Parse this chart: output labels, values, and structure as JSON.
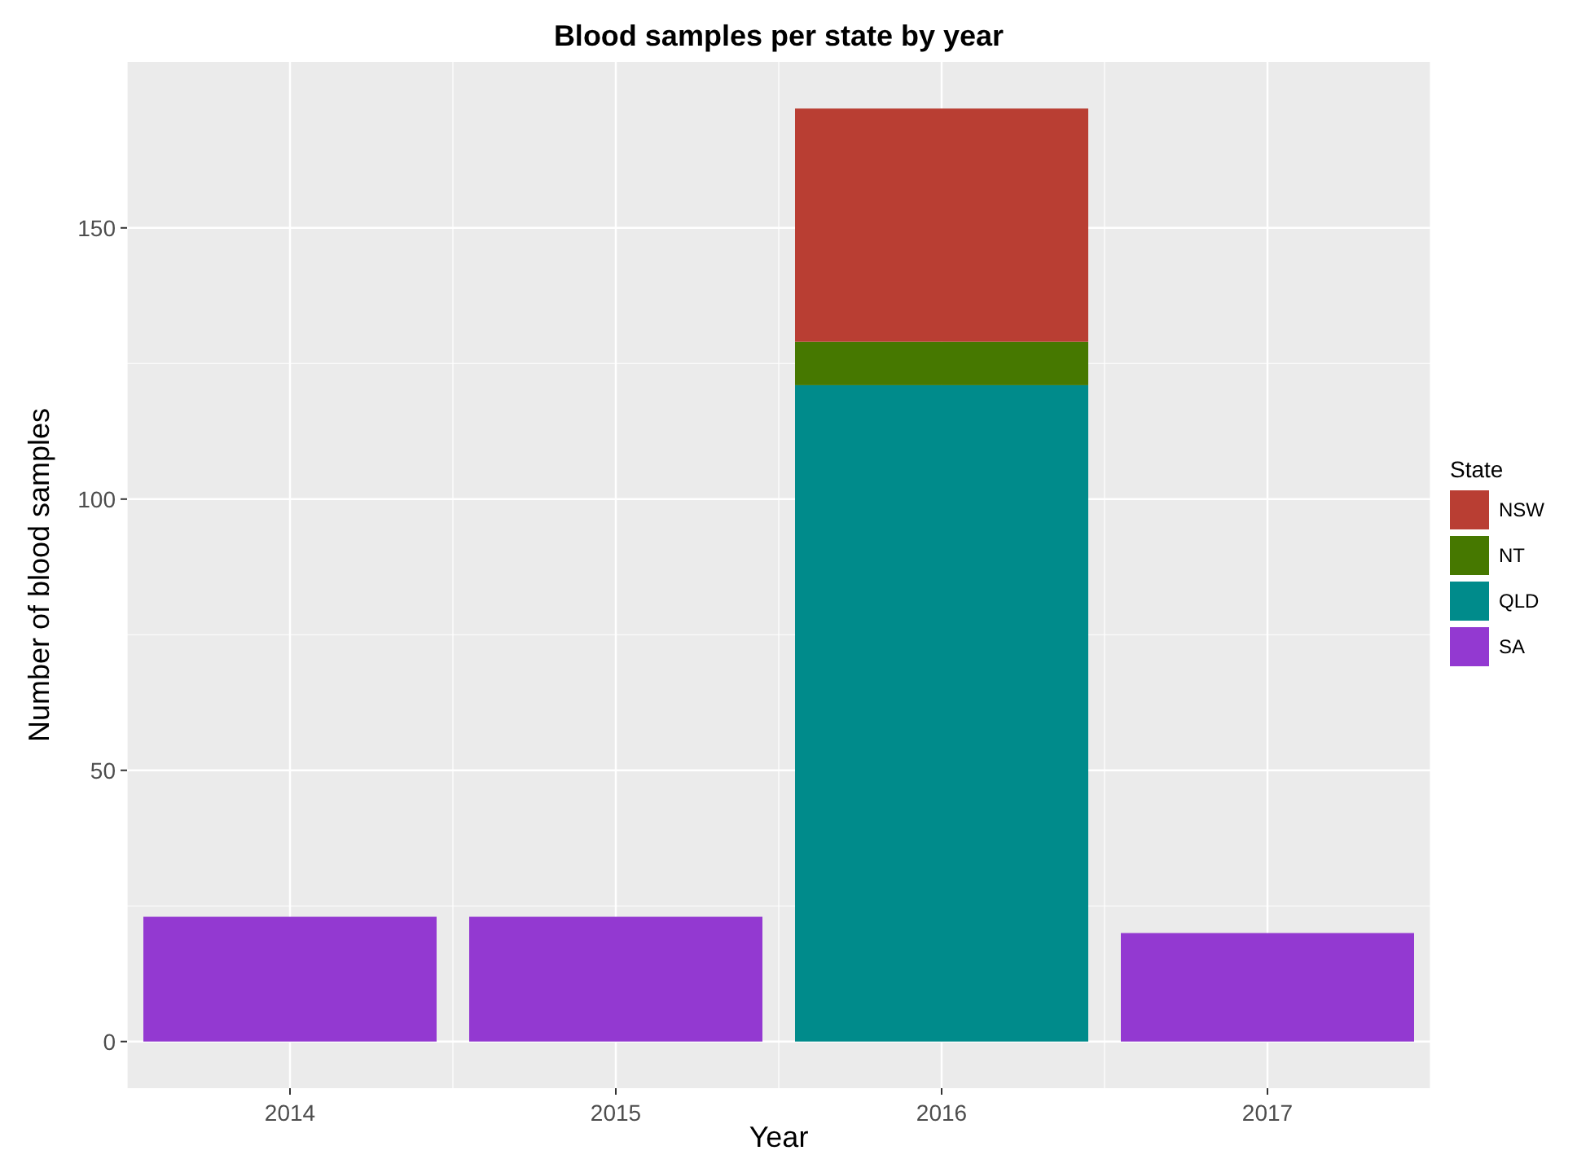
{
  "chart_data": {
    "type": "bar",
    "title": "Blood samples per state by year",
    "xlabel": "Year",
    "ylabel": "Number of blood samples",
    "legend_title": "State",
    "categories": [
      "2014",
      "2015",
      "2016",
      "2017"
    ],
    "stacked": true,
    "series": [
      {
        "name": "SA",
        "color": "#9339d1",
        "values": [
          23,
          23,
          null,
          20
        ]
      },
      {
        "name": "QLD",
        "color": "#008b8b",
        "values": [
          null,
          null,
          121,
          null
        ]
      },
      {
        "name": "NT",
        "color": "#467800",
        "values": [
          null,
          null,
          8,
          null
        ]
      },
      {
        "name": "NSW",
        "color": "#b93e33",
        "values": [
          null,
          null,
          43,
          null
        ]
      }
    ],
    "ylim": [
      -8.6,
      180.6
    ],
    "yticks": [
      0,
      50,
      100,
      150
    ],
    "grid": true,
    "legend": "right"
  }
}
